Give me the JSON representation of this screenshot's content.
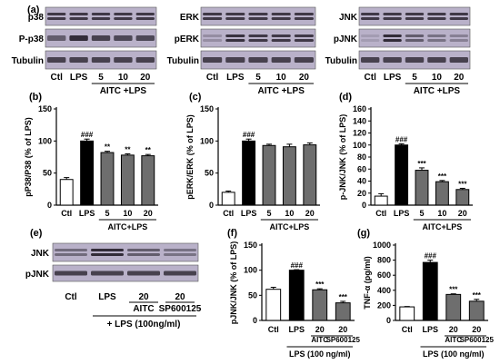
{
  "figure": {
    "panels": [
      {
        "letter": "(a)"
      },
      {
        "letter": "(b)"
      },
      {
        "letter": "(c)"
      },
      {
        "letter": "(d)"
      },
      {
        "letter": "(e)"
      },
      {
        "letter": "(f)"
      },
      {
        "letter": "(g)"
      }
    ]
  },
  "blots": {
    "a1": {
      "bands": [
        "P-p38",
        "P-p38",
        "Tubulin"
      ],
      "labels": [
        "p38",
        "P-p38",
        "Tubulin"
      ]
    },
    "a2": {
      "labels": [
        "ERK",
        "pERK",
        "Tubulin"
      ]
    },
    "a3": {
      "labels": [
        "JNK",
        "pJNK",
        "Tubulin"
      ]
    },
    "lanes_top": [
      "Ctl",
      "LPS",
      "5",
      "10",
      "20"
    ],
    "treatment_top": "AITC +LPS",
    "e": {
      "labels": [
        "JNK",
        "pJNK"
      ],
      "lanes": [
        "Ctl",
        "LPS",
        "20",
        "20"
      ],
      "sublanes": [
        "AITC",
        "SP600125"
      ],
      "treatment": "+ LPS (100ng/ml)"
    }
  },
  "colors": {
    "ctl": "#ffffff",
    "lps": "#000000",
    "treated": "#6e6e6e",
    "blot_bg": "#b9b1c9",
    "band": "#2a2530"
  },
  "chart_data": [
    {
      "id": "b",
      "type": "bar",
      "categories": [
        "Ctl",
        "LPS",
        "5",
        "10",
        "20"
      ],
      "values": [
        40,
        100,
        82,
        78,
        77
      ],
      "errors": [
        3,
        3,
        2,
        2,
        2
      ],
      "sig": [
        "",
        "###",
        "**",
        "**",
        "**"
      ],
      "ylabel": "pP38/P38 (% of LPS)",
      "ylim": [
        0,
        150
      ],
      "yticks": [
        0,
        50,
        100,
        150
      ],
      "xgroup": "AITC+LPS"
    },
    {
      "id": "c",
      "type": "bar",
      "categories": [
        "Ctl",
        "LPS",
        "5",
        "10",
        "20"
      ],
      "values": [
        20,
        100,
        93,
        91,
        94
      ],
      "errors": [
        2,
        3,
        2,
        4,
        3
      ],
      "sig": [
        "",
        "###",
        "",
        "",
        ""
      ],
      "ylabel": "pERK/ERK (% of LPS)",
      "ylim": [
        0,
        150
      ],
      "yticks": [
        0,
        50,
        100,
        150
      ],
      "xgroup": "AITC+LPS"
    },
    {
      "id": "d",
      "type": "bar",
      "categories": [
        "Ctl",
        "LPS",
        "5",
        "10",
        "20"
      ],
      "values": [
        15,
        100,
        58,
        39,
        26
      ],
      "errors": [
        4,
        2,
        4,
        2,
        2
      ],
      "sig": [
        "",
        "###",
        "***",
        "***",
        "***"
      ],
      "ylabel": "p-JNK/JNK (% of LPS)",
      "ylim": [
        0,
        160
      ],
      "yticks": [
        0,
        20,
        40,
        60,
        80,
        100,
        120,
        140,
        160
      ],
      "xgroup": "AITC+LPS"
    },
    {
      "id": "f",
      "type": "bar",
      "categories": [
        "Ctl",
        "LPS",
        "20",
        "20"
      ],
      "subcats": [
        "",
        "",
        "AITC",
        "SP600125"
      ],
      "values": [
        62,
        100,
        61,
        35
      ],
      "errors": [
        4,
        1,
        2,
        3
      ],
      "sig": [
        "",
        "###",
        "***",
        "***"
      ],
      "ylabel": "pJNK/JNK  (% of LPS)",
      "ylim": [
        0,
        150
      ],
      "yticks": [
        0,
        50,
        100,
        150
      ],
      "xgroup": "LPS (100 ng/ml)"
    },
    {
      "id": "g",
      "type": "bar",
      "categories": [
        "Ctl",
        "LPS",
        "20",
        "20"
      ],
      "subcats": [
        "",
        "",
        "AITC",
        "SP600125"
      ],
      "values": [
        180,
        770,
        345,
        255
      ],
      "errors": [
        5,
        30,
        8,
        25
      ],
      "sig": [
        "",
        "###",
        "***",
        "***"
      ],
      "ylabel": "TNF-α  (pg/ml)",
      "ylim": [
        0,
        1000
      ],
      "yticks": [
        0,
        200,
        400,
        600,
        800,
        1000
      ],
      "xgroup": "LPS (100 ng/ml)"
    }
  ]
}
